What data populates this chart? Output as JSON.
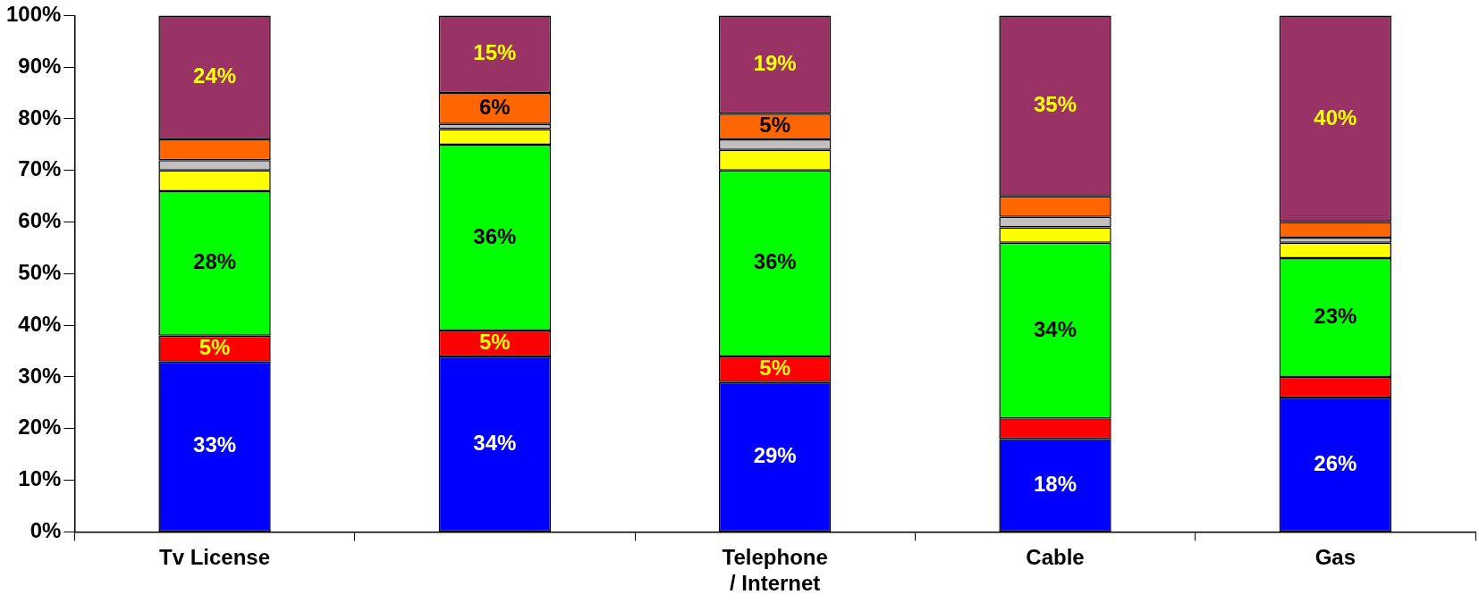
{
  "chart_data": {
    "type": "bar",
    "stacked": true,
    "categories": [
      "Tv License",
      null,
      "Telephone / Internet",
      "Cable",
      "Gas"
    ],
    "ylim": [
      0,
      100
    ],
    "yticks": [
      {
        "value": 0,
        "label": "0%"
      },
      {
        "value": 10,
        "label": "10%"
      },
      {
        "value": 20,
        "label": "20%"
      },
      {
        "value": 30,
        "label": "30%"
      },
      {
        "value": 40,
        "label": "40%"
      },
      {
        "value": 50,
        "label": "50%"
      },
      {
        "value": 60,
        "label": "60%"
      },
      {
        "value": 70,
        "label": "70%"
      },
      {
        "value": 80,
        "label": "80%"
      },
      {
        "value": 90,
        "label": "90%"
      },
      {
        "value": 100,
        "label": "100%"
      }
    ],
    "grid": false,
    "legend": false,
    "series": [
      {
        "color": "#0000ff",
        "values": [
          33,
          34,
          29,
          18,
          26
        ],
        "value_labels": [
          "33%",
          "34%",
          "29%",
          "18%",
          "26%"
        ]
      },
      {
        "color": "#ff0000",
        "values": [
          5,
          5,
          5,
          4,
          4
        ],
        "value_labels": [
          "5%",
          "5%",
          "5%",
          null,
          null
        ]
      },
      {
        "color": "#00ff00",
        "values": [
          28,
          36,
          36,
          34,
          23
        ],
        "value_labels": [
          "28%",
          "36%",
          "36%",
          "34%",
          "23%"
        ]
      },
      {
        "color": "#ffff00",
        "values": [
          4,
          3,
          4,
          3,
          3
        ]
      },
      {
        "color": "#c0c0c0",
        "values": [
          2,
          1,
          2,
          2,
          1
        ]
      },
      {
        "color": "#ff6600",
        "values": [
          4,
          6,
          5,
          4,
          3
        ],
        "value_labels": [
          null,
          "6%",
          "5%",
          null,
          null
        ]
      },
      {
        "color": "#993366",
        "values": [
          24,
          15,
          19,
          35,
          40
        ],
        "value_labels": [
          "24%",
          "15%",
          "19%",
          "35%",
          "40%"
        ]
      }
    ]
  }
}
